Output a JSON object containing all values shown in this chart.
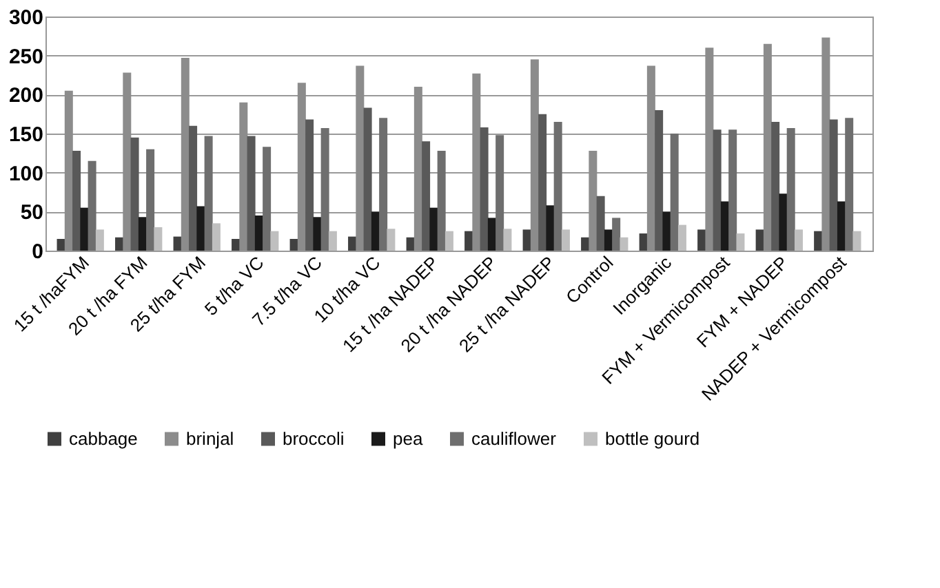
{
  "chart_data": {
    "type": "bar",
    "categories": [
      "15 t /haFYM",
      "20 t /ha FYM",
      "25 t/ha FYM",
      "5 t/ha VC",
      "7.5 t/ha VC",
      "10 t/ha VC",
      "15 t /ha NADEP",
      "20 t /ha NADEP",
      "25 t /ha NADEP",
      "Control",
      "Inorganic",
      "FYM + Vermicompost",
      "FYM + NADEP",
      "NADEP + Vermicompost"
    ],
    "series": [
      {
        "name": "cabbage",
        "color": "#404040",
        "values": [
          15,
          17,
          18,
          15,
          15,
          18,
          17,
          25,
          27,
          17,
          22,
          27,
          27,
          25
        ]
      },
      {
        "name": "brinjal",
        "color": "#8c8c8c",
        "values": [
          205,
          228,
          247,
          190,
          215,
          237,
          210,
          227,
          245,
          128,
          237,
          260,
          265,
          273
        ]
      },
      {
        "name": "broccoli",
        "color": "#595959",
        "values": [
          128,
          145,
          160,
          147,
          168,
          183,
          140,
          158,
          175,
          70,
          180,
          155,
          165,
          168
        ]
      },
      {
        "name": "pea",
        "color": "#1a1a1a",
        "values": [
          55,
          43,
          57,
          45,
          43,
          50,
          55,
          42,
          58,
          27,
          50,
          63,
          73,
          63
        ]
      },
      {
        "name": "cauliflower",
        "color": "#6e6e6e",
        "values": [
          115,
          130,
          147,
          133,
          157,
          170,
          128,
          148,
          165,
          42,
          150,
          155,
          157,
          170
        ]
      },
      {
        "name": "bottle gourd",
        "color": "#bfbfbf",
        "values": [
          27,
          30,
          35,
          25,
          25,
          28,
          25,
          28,
          27,
          17,
          33,
          22,
          27,
          25
        ]
      }
    ],
    "ylim": [
      0,
      300
    ],
    "yticks": [
      0,
      50,
      100,
      150,
      200,
      250,
      300
    ],
    "grid": "y",
    "legend": "bottom"
  }
}
